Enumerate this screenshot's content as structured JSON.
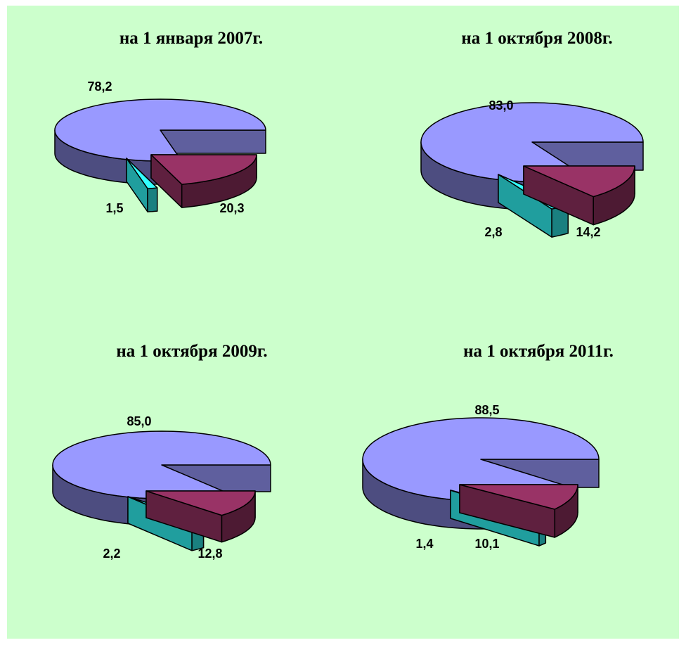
{
  "chart_data": [
    {
      "type": "pie",
      "title": "на 1 января 2007г.",
      "slices": [
        {
          "value": 78.2,
          "label": "78,2",
          "color": "#9999ff"
        },
        {
          "value": 1.5,
          "label": "1,5",
          "color": "#33ffff"
        },
        {
          "value": 20.3,
          "label": "20,3",
          "color": "#993366"
        }
      ]
    },
    {
      "type": "pie",
      "title": "на 1 октября 2008г.",
      "slices": [
        {
          "value": 83.0,
          "label": "83,0",
          "color": "#9999ff"
        },
        {
          "value": 2.8,
          "label": "2,8",
          "color": "#33ffff"
        },
        {
          "value": 14.2,
          "label": "14,2",
          "color": "#993366"
        }
      ]
    },
    {
      "type": "pie",
      "title": "на 1 октября 2009г.",
      "slices": [
        {
          "value": 85.0,
          "label": "85,0",
          "color": "#9999ff"
        },
        {
          "value": 2.2,
          "label": "2,2",
          "color": "#33ffff"
        },
        {
          "value": 12.8,
          "label": "12,8",
          "color": "#993366"
        }
      ]
    },
    {
      "type": "pie",
      "title": "на 1 октября 2011г.",
      "slices": [
        {
          "value": 88.5,
          "label": "88,5",
          "color": "#9999ff"
        },
        {
          "value": 1.4,
          "label": "1,4",
          "color": "#33ffff"
        },
        {
          "value": 10.1,
          "label": "10,1",
          "color": "#993366"
        }
      ]
    }
  ],
  "colors": {
    "background": "#ccffcc",
    "large_slice": "#9999ff",
    "small_slice": "#33ffff",
    "medium_slice": "#993366"
  }
}
